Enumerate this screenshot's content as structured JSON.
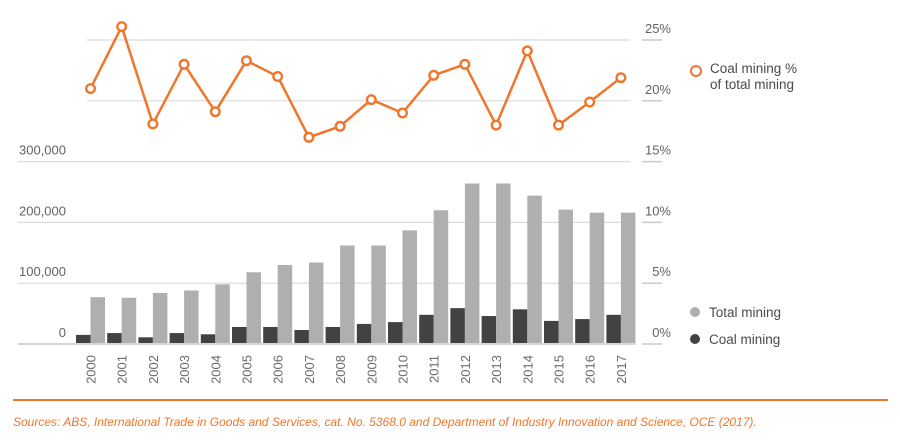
{
  "chart_data": {
    "type": "combo-bar-line",
    "categories": [
      "2000",
      "2001",
      "2002",
      "2003",
      "2004",
      "2005",
      "2006",
      "2007",
      "2008",
      "2009",
      "2010",
      "2011",
      "2012",
      "2013",
      "2014",
      "2015",
      "2016",
      "2017"
    ],
    "series": [
      {
        "name": "Total mining",
        "type": "bar",
        "axis": "left",
        "color": "#AFAFAF",
        "values": [
          77000,
          76000,
          84000,
          88000,
          98000,
          118000,
          130000,
          134000,
          162000,
          162000,
          187000,
          220000,
          264000,
          264000,
          244000,
          221000,
          216000,
          216000
        ]
      },
      {
        "name": "Coal mining",
        "type": "bar",
        "axis": "left",
        "color": "#424242",
        "values": [
          15000,
          18000,
          11000,
          18000,
          16000,
          28000,
          28000,
          23000,
          28000,
          33000,
          36000,
          48000,
          59000,
          46000,
          57000,
          38000,
          41000,
          48000
        ]
      },
      {
        "name": "Coal mining % of total mining",
        "type": "line",
        "axis": "right",
        "color": "#F0762B",
        "values": [
          21.0,
          26.1,
          18.1,
          23.0,
          19.1,
          23.3,
          22.0,
          17.0,
          17.9,
          20.1,
          19.0,
          22.1,
          23.0,
          18.0,
          24.1,
          18.0,
          19.9,
          21.9
        ]
      }
    ],
    "left_axis": {
      "min": 0,
      "max": 300000,
      "tick_labels": [
        "0",
        "100,000",
        "200,000",
        "300,000"
      ],
      "tick_values": [
        0,
        100000,
        200000,
        300000
      ]
    },
    "right_axis": {
      "min": 0,
      "max": 25,
      "tick_labels": [
        "0%",
        "5%",
        "10%",
        "15%",
        "20%",
        "25%"
      ],
      "tick_values": [
        0,
        5,
        10,
        15,
        20,
        25
      ]
    },
    "grid": "horizontal",
    "legend_position": "right",
    "title": ""
  },
  "legend": {
    "line_label_1": "Coal mining %",
    "line_label_2": "of total mining",
    "total_label": "Total mining",
    "coal_label": "Coal mining"
  },
  "source_note": "Sources: ABS, International Trade in Goods and Services, cat. No. 5368.0 and Department of Industry Innovation and Science, OCE (2017).",
  "colors": {
    "accent_orange": "#F0762B",
    "bar_total": "#AFAFAF",
    "bar_coal": "#424242",
    "gridline": "#DADADA",
    "axis_line": "#C7C7C7",
    "right_tick": "#CCCCCC",
    "axis_text": "#636363",
    "year_text": "#6B6B6B",
    "legend_text": "#4A4A4A",
    "marker_fill": "#FFFFFF"
  }
}
